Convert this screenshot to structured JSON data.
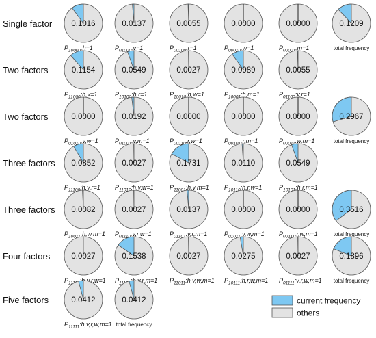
{
  "chart_data": {
    "type": "pie",
    "colors": {
      "current": "#7ec8f2",
      "others": "#e3e3e3",
      "stroke": "#555555"
    },
    "legend": {
      "position": "bottom-right",
      "current_label": "current frequency",
      "others_label": "others"
    },
    "rows": [
      {
        "label": "Single factor",
        "pies": [
          {
            "value": 0.1016,
            "label": "0.1016",
            "caption_main": "P",
            "caption_sub": "10000",
            "caption_tail": ":h=1"
          },
          {
            "value": 0.0137,
            "label": "0.0137",
            "caption_main": "P",
            "caption_sub": "01000",
            "caption_tail": ":v=1"
          },
          {
            "value": 0.0055,
            "label": "0.0055",
            "caption_main": "P",
            "caption_sub": "00100",
            "caption_tail": ":r=1"
          },
          {
            "value": 0.0,
            "label": "0.0000",
            "caption_main": "P",
            "caption_sub": "00010",
            "caption_tail": ":w=1"
          },
          {
            "value": 0.0,
            "label": "0.0000",
            "caption_main": "P",
            "caption_sub": "00001",
            "caption_tail": ":m=1"
          },
          {
            "value": 0.1209,
            "label": "0.1209",
            "caption_total": "total frequency"
          }
        ]
      },
      {
        "label": "Two factors",
        "pies": [
          {
            "value": 0.1154,
            "label": "0.1154",
            "caption_main": "P",
            "caption_sub": "11000",
            "caption_tail": ":h,v=1"
          },
          {
            "value": 0.0549,
            "label": "0.0549",
            "caption_main": "P",
            "caption_sub": "10100",
            "caption_tail": ":h,r=1"
          },
          {
            "value": 0.0027,
            "label": "0.0027",
            "caption_main": "P",
            "caption_sub": "10010",
            "caption_tail": ":h,w=1"
          },
          {
            "value": 0.0989,
            "label": "0.0989",
            "caption_main": "P",
            "caption_sub": "10001",
            "caption_tail": ":h,m=1"
          },
          {
            "value": 0.0055,
            "label": "0.0055",
            "caption_main": "P",
            "caption_sub": "01100",
            "caption_tail": ":v,r=1"
          }
        ]
      },
      {
        "label": "Two factors",
        "pies": [
          {
            "value": 0.0,
            "label": "0.0000",
            "caption_main": "P",
            "caption_sub": "01010",
            "caption_tail": ":v,w=1"
          },
          {
            "value": 0.0192,
            "label": "0.0192",
            "caption_main": "P",
            "caption_sub": "01001",
            "caption_tail": ":v,m=1"
          },
          {
            "value": 0.0,
            "label": "0.0000",
            "caption_main": "P",
            "caption_sub": "00110",
            "caption_tail": ":r,w=1"
          },
          {
            "value": 0.0,
            "label": "0.0000",
            "caption_main": "P",
            "caption_sub": "00101",
            "caption_tail": ":r,m=1"
          },
          {
            "value": 0.0,
            "label": "0.0000",
            "caption_main": "P",
            "caption_sub": "00011",
            "caption_tail": ":w,m=1"
          },
          {
            "value": 0.2967,
            "label": "0.2967",
            "caption_total": "total frequency"
          }
        ]
      },
      {
        "label": "Three factors",
        "pies": [
          {
            "value": 0.0852,
            "label": "0.0852",
            "caption_main": "P",
            "caption_sub": "11100",
            "caption_tail": ":h,v,r=1"
          },
          {
            "value": 0.0027,
            "label": "0.0027",
            "caption_main": "P",
            "caption_sub": "11010",
            "caption_tail": ":h,v,w=1"
          },
          {
            "value": 0.1731,
            "label": "0.1731",
            "caption_main": "P",
            "caption_sub": "11001",
            "caption_tail": ":h,v,m=1"
          },
          {
            "value": 0.011,
            "label": "0.0110",
            "caption_main": "P",
            "caption_sub": "10110",
            "caption_tail": ":h,r,w=1"
          },
          {
            "value": 0.0549,
            "label": "0.0549",
            "caption_main": "P",
            "caption_sub": "10101",
            "caption_tail": ":h,r,m=1"
          }
        ]
      },
      {
        "label": "Three factors",
        "pies": [
          {
            "value": 0.0082,
            "label": "0.0082",
            "caption_main": "P",
            "caption_sub": "10011",
            "caption_tail": ":h,w,m=1"
          },
          {
            "value": 0.0027,
            "label": "0.0027",
            "caption_main": "P",
            "caption_sub": "01110",
            "caption_tail": ":v,r,w=1"
          },
          {
            "value": 0.0137,
            "label": "0.0137",
            "caption_main": "P",
            "caption_sub": "01101",
            "caption_tail": ":v,r,m=1"
          },
          {
            "value": 0.0,
            "label": "0.0000",
            "caption_main": "P",
            "caption_sub": "01011",
            "caption_tail": ":v,w,m=1"
          },
          {
            "value": 0.0,
            "label": "0.0000",
            "caption_main": "P",
            "caption_sub": "00111",
            "caption_tail": ":r,w,m=1"
          },
          {
            "value": 0.3516,
            "label": "0.3516",
            "caption_total": "total frequency"
          }
        ]
      },
      {
        "label": "Four factors",
        "pies": [
          {
            "value": 0.0027,
            "label": "0.0027",
            "caption_main": "P",
            "caption_sub": "11110",
            "caption_tail": ":h,v,r,w=1"
          },
          {
            "value": 0.1538,
            "label": "0.1538",
            "caption_main": "P",
            "caption_sub": "11101",
            "caption_tail": ":h,v,r,m=1"
          },
          {
            "value": 0.0027,
            "label": "0.0027",
            "caption_main": "P",
            "caption_sub": "11011",
            "caption_tail": ":h,v,w,m=1"
          },
          {
            "value": 0.0275,
            "label": "0.0275",
            "caption_main": "P",
            "caption_sub": "10111",
            "caption_tail": ":h,r,w,m=1"
          },
          {
            "value": 0.0027,
            "label": "0.0027",
            "caption_main": "P",
            "caption_sub": "01111",
            "caption_tail": ":v,r,w,m=1"
          },
          {
            "value": 0.1896,
            "label": "0.1896",
            "caption_total": "total frequency"
          }
        ]
      },
      {
        "label": "Five factors",
        "pies": [
          {
            "value": 0.0412,
            "label": "0.0412",
            "caption_main": "P",
            "caption_sub": "11111",
            "caption_tail": ":h,v,r,w,m=1"
          },
          {
            "value": 0.0412,
            "label": "0.0412",
            "caption_total": "total frequency"
          }
        ]
      }
    ]
  }
}
